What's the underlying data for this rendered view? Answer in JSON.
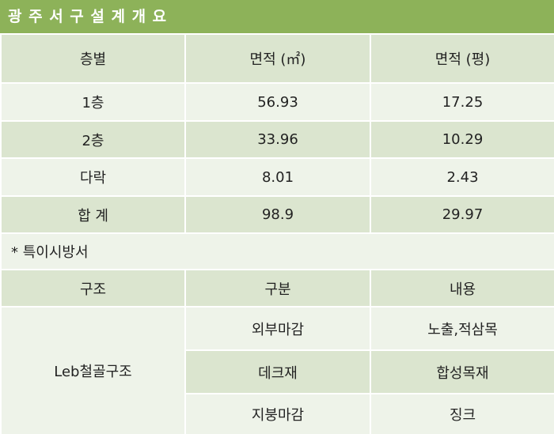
{
  "title": "광 주 서 구 설 계 개 요",
  "area_table": {
    "header": [
      "층별",
      "면적 (㎡)",
      "면적 (평)"
    ],
    "rows": [
      [
        "1층",
        "56.93",
        "17.25"
      ],
      [
        "2층",
        "33.96",
        "10.29"
      ],
      [
        "다락",
        "8.01",
        "2.43"
      ],
      [
        "합 계",
        "98.9",
        "29.97"
      ]
    ]
  },
  "note": "* 특이시방서",
  "spec_table": {
    "header": [
      "구조",
      "구분",
      "내용"
    ],
    "structure": "Leb철골구조",
    "rows": [
      [
        "외부마감",
        "노출,적삼목"
      ],
      [
        "데크재",
        "합성목재"
      ],
      [
        "지붕마감",
        "징크"
      ]
    ]
  }
}
